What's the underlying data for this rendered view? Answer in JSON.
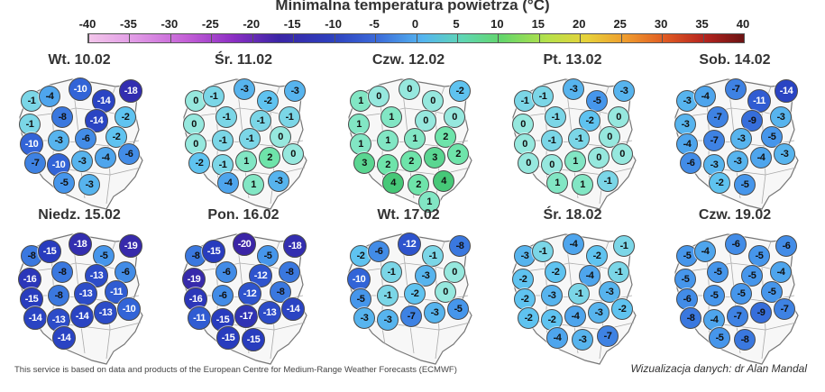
{
  "title": "Minimalna temperatura powietrza (°C)",
  "scale": {
    "labels": [
      "-40",
      "-35",
      "-30",
      "-25",
      "-20",
      "-15",
      "-10",
      "-5",
      "0",
      "5",
      "10",
      "15",
      "20",
      "25",
      "30",
      "35",
      "40"
    ],
    "min": -40,
    "max": 40
  },
  "footer_left": "This service is based on data and products of the European Centre for Medium-Range Weather Forecasts (ECMWF)",
  "footer_right": "Wizualizacja danych: dr Alan Mandal",
  "panels": [
    {
      "day": "Wt. 10.02",
      "values": [
        -1,
        -4,
        -10,
        -14,
        -18,
        -1,
        -8,
        -14,
        -2,
        -10,
        -3,
        -6,
        -2,
        -7,
        -10,
        -3,
        -4,
        -6,
        -5,
        -3
      ]
    },
    {
      "day": "Śr. 11.02",
      "values": [
        0,
        -1,
        -3,
        -2,
        -3,
        0,
        -1,
        -1,
        -1,
        0,
        -1,
        -1,
        0,
        -2,
        -1,
        1,
        2,
        0,
        -4,
        1,
        -3
      ]
    },
    {
      "day": "Czw. 12.02",
      "values": [
        1,
        0,
        0,
        0,
        -2,
        1,
        1,
        0,
        0,
        1,
        1,
        1,
        2,
        3,
        2,
        2,
        3,
        2,
        4,
        2,
        4,
        1
      ]
    },
    {
      "day": "Pt. 13.02",
      "values": [
        -1,
        -1,
        -3,
        -5,
        -3,
        0,
        -1,
        -2,
        0,
        0,
        -1,
        -1,
        0,
        0,
        0,
        1,
        0,
        0,
        1,
        1,
        -1
      ]
    },
    {
      "day": "Sob. 14.02",
      "values": [
        -3,
        -4,
        -7,
        -11,
        -14,
        -3,
        -7,
        -9,
        -3,
        -4,
        -7,
        -3,
        -5,
        -6,
        -3,
        -3,
        -4,
        -3,
        -2,
        -5
      ]
    },
    {
      "day": "Niedz. 15.02",
      "values": [
        -8,
        -15,
        -18,
        -5,
        -19,
        -16,
        -8,
        -13,
        -6,
        -15,
        -8,
        -13,
        -11,
        -14,
        -13,
        -14,
        -13,
        -10,
        -14
      ]
    },
    {
      "day": "Pon. 16.02",
      "values": [
        -8,
        -15,
        -20,
        -5,
        -18,
        -19,
        -6,
        -12,
        -8,
        -16,
        -6,
        -12,
        -8,
        -11,
        -15,
        -17,
        -13,
        -14,
        -15,
        -15
      ]
    },
    {
      "day": "Wt. 17.02",
      "values": [
        -2,
        -6,
        -12,
        -1,
        -8,
        -10,
        -1,
        -3,
        0,
        -5,
        -1,
        -2,
        0,
        -3,
        -3,
        -7,
        -3,
        -5
      ]
    },
    {
      "day": "Śr. 18.02",
      "values": [
        -3,
        -1,
        -4,
        -2,
        -1,
        -2,
        -2,
        -4,
        -1,
        -2,
        -3,
        -1,
        -3,
        -2,
        -2,
        -4,
        -3,
        -2,
        -4,
        -3,
        -7
      ]
    },
    {
      "day": "Czw. 19.02",
      "values": [
        -5,
        -4,
        -6,
        -5,
        -6,
        -5,
        -5,
        -5,
        -4,
        -6,
        -5,
        -5,
        -5,
        -8,
        -4,
        -7,
        -9,
        -7,
        -5,
        -8
      ]
    }
  ]
}
